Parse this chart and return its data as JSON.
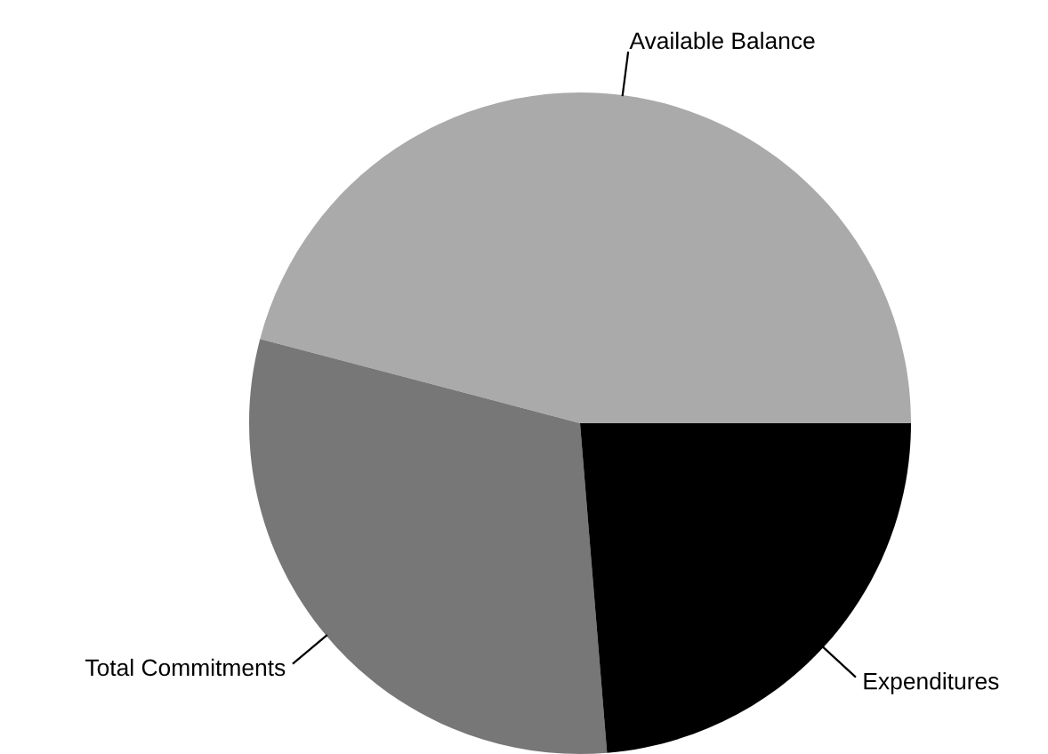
{
  "chart_data": {
    "type": "pie",
    "categories": [
      "Available Balance",
      "Total Commitments",
      "Expenditures"
    ],
    "values": [
      45.9,
      30.4,
      23.7
    ],
    "colors": [
      "#aaaaaa",
      "#777777",
      "#000000"
    ]
  }
}
